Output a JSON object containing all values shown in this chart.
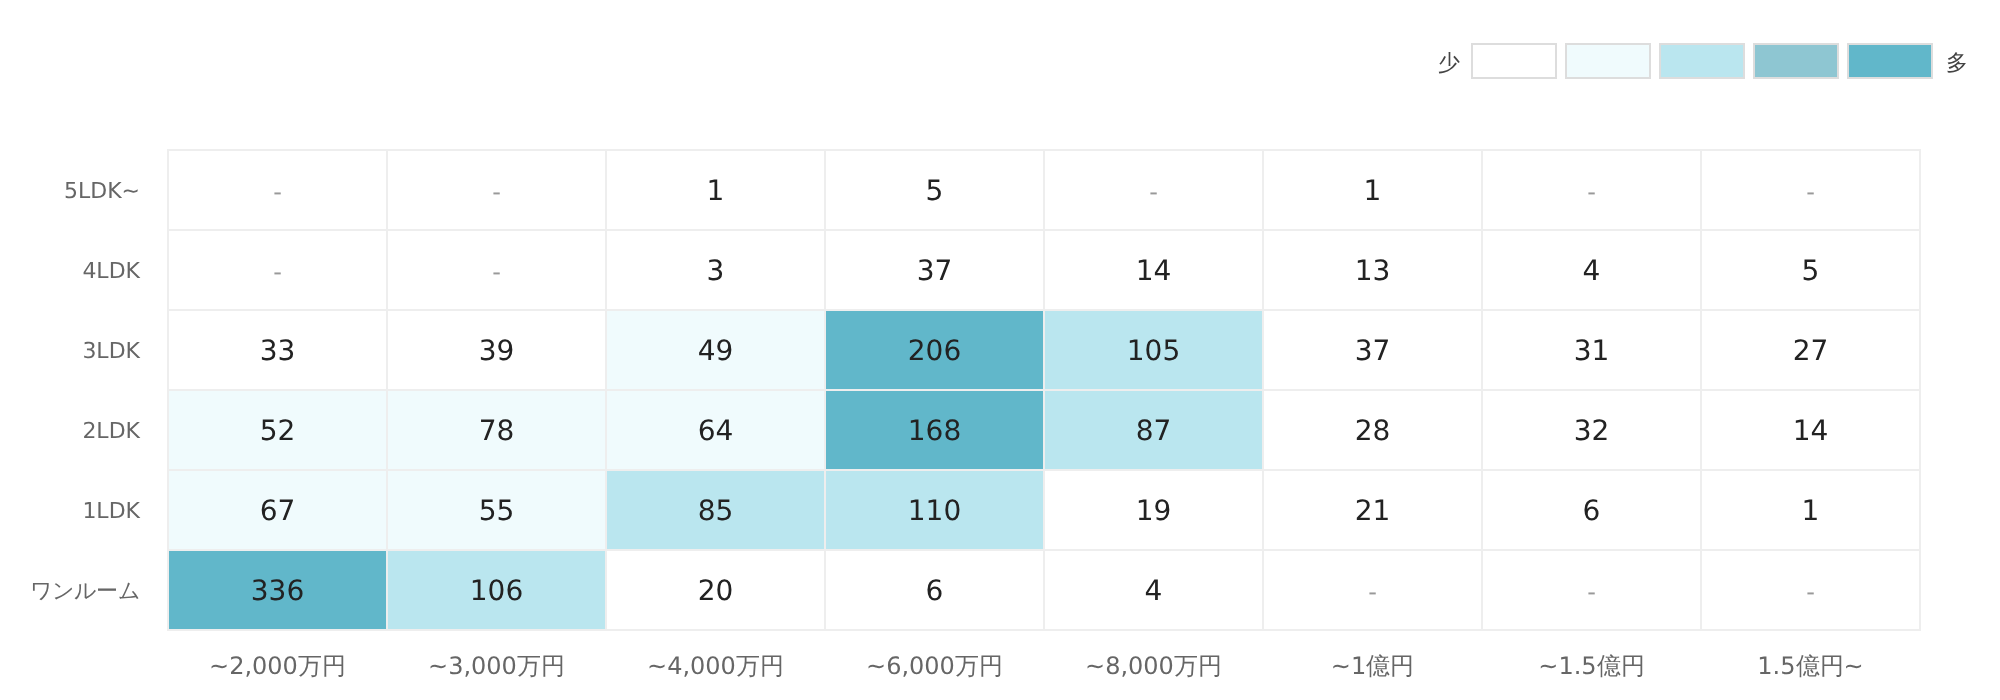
{
  "chart_data": {
    "type": "heatmap",
    "categories": [
      "~2,000万円",
      "~3,000万円",
      "~4,000万円",
      "~6,000万円",
      "~8,000万円",
      "~1億円",
      "~1.5億円",
      "1.5億円~"
    ],
    "y_categories": [
      "5LDK~",
      "4LDK",
      "3LDK",
      "2LDK",
      "1LDK",
      "ワンルーム"
    ],
    "cells": [
      [
        null,
        null,
        1,
        5,
        null,
        1,
        null,
        null
      ],
      [
        null,
        null,
        3,
        37,
        14,
        13,
        4,
        5
      ],
      [
        33,
        39,
        49,
        206,
        105,
        37,
        31,
        27
      ],
      [
        52,
        78,
        64,
        168,
        87,
        28,
        32,
        14
      ],
      [
        67,
        55,
        85,
        110,
        19,
        21,
        6,
        1
      ],
      [
        336,
        106,
        20,
        6,
        4,
        null,
        null,
        null
      ]
    ],
    "cell_labels": [
      [
        "-",
        "-",
        "1",
        "5",
        "-",
        "1",
        "-",
        "-"
      ],
      [
        "-",
        "-",
        "3",
        "37",
        "14",
        "13",
        "4",
        "5"
      ],
      [
        "33",
        "39",
        "49",
        "206",
        "105",
        "37",
        "31",
        "27"
      ],
      [
        "52",
        "78",
        "64",
        "168",
        "87",
        "28",
        "32",
        "14"
      ],
      [
        "67",
        "55",
        "85",
        "110",
        "19",
        "21",
        "6",
        "1"
      ],
      [
        "336",
        "106",
        "20",
        "6",
        "4",
        "-",
        "-",
        "-"
      ]
    ],
    "colors": [
      [
        "#ffffff",
        "#ffffff",
        "#ffffff",
        "#ffffff",
        "#ffffff",
        "#ffffff",
        "#ffffff",
        "#ffffff"
      ],
      [
        "#ffffff",
        "#ffffff",
        "#ffffff",
        "#ffffff",
        "#ffffff",
        "#ffffff",
        "#ffffff",
        "#ffffff"
      ],
      [
        "#ffffff",
        "#ffffff",
        "#f0fbfd",
        "#61b7ca",
        "#bae6ef",
        "#ffffff",
        "#ffffff",
        "#ffffff"
      ],
      [
        "#f0fbfd",
        "#f0fbfd",
        "#f0fbfd",
        "#61b7ca",
        "#bae6ef",
        "#ffffff",
        "#ffffff",
        "#ffffff"
      ],
      [
        "#f0fbfd",
        "#f0fbfd",
        "#bae6ef",
        "#bae6ef",
        "#ffffff",
        "#ffffff",
        "#ffffff",
        "#ffffff"
      ],
      [
        "#61b7ca",
        "#bae6ef",
        "#ffffff",
        "#ffffff",
        "#ffffff",
        "#ffffff",
        "#ffffff",
        "#ffffff"
      ]
    ],
    "annotations": [
      "少",
      "多"
    ]
  }
}
